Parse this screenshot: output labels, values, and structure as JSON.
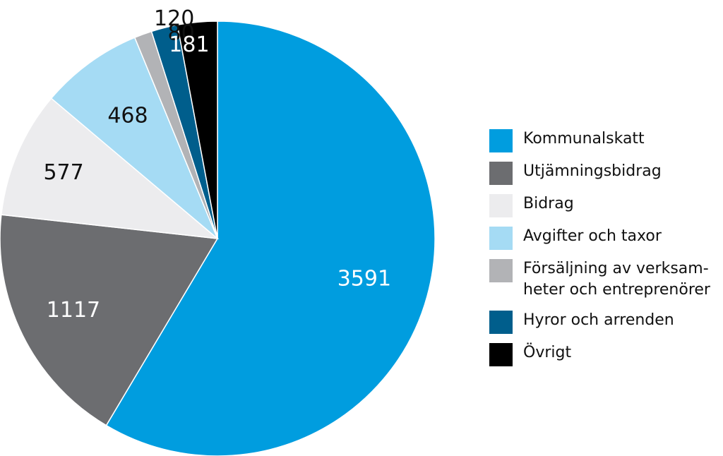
{
  "chart_data": {
    "type": "pie",
    "slices": [
      {
        "label": "Kommunalskatt",
        "legend_label": "Kommunalskatt",
        "value": 3591,
        "color": "#009ddf",
        "value_text_color": "#ffffff"
      },
      {
        "label": "Utjämningsbidrag",
        "legend_label": "Utjämningsbidrag",
        "value": 1117,
        "color": "#6c6d70",
        "value_text_color": "#ffffff"
      },
      {
        "label": "Bidrag",
        "legend_label": "Bidrag",
        "value": 577,
        "color": "#ececee",
        "value_text_color": "#111111"
      },
      {
        "label": "Avgifter och taxor",
        "legend_label": "Avgifter och taxor",
        "value": 468,
        "color": "#a5dbf4",
        "value_text_color": "#111111"
      },
      {
        "label": "Försäljning av verksamheter och entreprenörer",
        "legend_label": "Försäljning av verksam-\nheter och entreprenörer",
        "value": 80,
        "color": "#b2b3b6",
        "value_text_color": "#111111"
      },
      {
        "label": "Hyror och arrenden",
        "legend_label": "Hyror och arrenden",
        "value": 120,
        "color": "#005e8c",
        "value_text_color": "#111111"
      },
      {
        "label": "Övrigt",
        "legend_label": "Övrigt",
        "value": 181,
        "color": "#000000",
        "value_text_color": "#ffffff"
      }
    ],
    "legend_position": "right"
  }
}
